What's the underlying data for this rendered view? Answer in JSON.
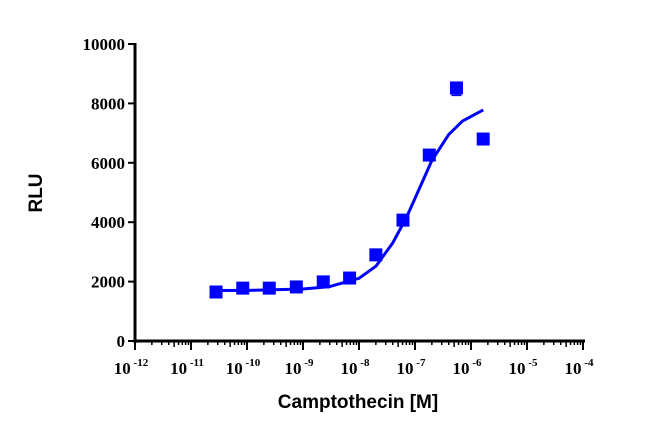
{
  "chart_data": {
    "type": "scatter",
    "title": "",
    "xlabel": "Camptothecin [M]",
    "ylabel": "RLU",
    "x_scale": "log",
    "xlim": [
      1e-12,
      0.0001
    ],
    "ylim": [
      0,
      10000
    ],
    "grid": false,
    "color": "#0000FF",
    "x_ticks": [
      {
        "base": "10",
        "exp": "-12"
      },
      {
        "base": "10",
        "exp": "-11"
      },
      {
        "base": "10",
        "exp": "-10"
      },
      {
        "base": "10",
        "exp": "-9"
      },
      {
        "base": "10",
        "exp": "-8"
      },
      {
        "base": "10",
        "exp": "-7"
      },
      {
        "base": "10",
        "exp": "-6"
      },
      {
        "base": "10",
        "exp": "-5"
      },
      {
        "base": "10",
        "exp": "-4"
      }
    ],
    "y_ticks": [
      "0",
      "2000",
      "4000",
      "6000",
      "8000",
      "10000"
    ],
    "y_tick_values": [
      0,
      2000,
      4000,
      6000,
      8000,
      10000
    ],
    "series": [
      {
        "marker": "square",
        "x": [
          2.8e-11,
          8.4e-11,
          2.5e-10,
          7.6e-10,
          2.3e-09,
          6.8e-09,
          2e-08,
          6.1e-08,
          1.8e-07,
          5.5e-07,
          1.65e-06
        ],
        "y": [
          1650,
          1780,
          1780,
          1820,
          1990,
          2120,
          2900,
          4070,
          6260,
          8520,
          6800
        ],
        "y_err": [
          0,
          0,
          0,
          0,
          0,
          0,
          0,
          0,
          0,
          250,
          0
        ]
      }
    ],
    "fit_curve": {
      "x": [
        2.8e-11,
        1e-10,
        1e-09,
        3e-09,
        1e-08,
        2e-08,
        4e-08,
        7e-08,
        1e-07,
        2e-07,
        4e-07,
        7e-07,
        1.65e-06
      ],
      "y": [
        1700,
        1705,
        1750,
        1830,
        2110,
        2520,
        3300,
        4150,
        4800,
        6080,
        6950,
        7400,
        7780
      ]
    }
  }
}
